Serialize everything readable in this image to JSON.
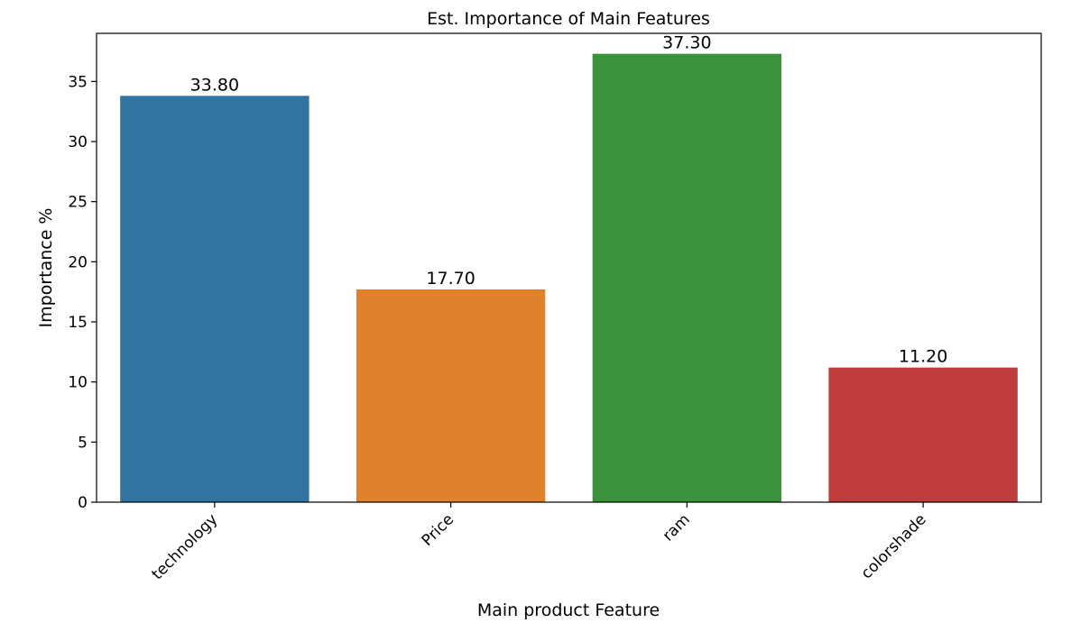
{
  "chart_data": {
    "type": "bar",
    "title": "Est. Importance of Main Features",
    "xlabel": "Main product Feature",
    "ylabel": "Importance %",
    "categories": [
      "technology",
      "Price",
      "ram",
      "colorshade"
    ],
    "values": [
      33.8,
      17.7,
      37.3,
      11.2
    ],
    "value_labels": [
      "33.80",
      "17.70",
      "37.30",
      "11.20"
    ],
    "colors": [
      "#3274a1",
      "#e1812c",
      "#3a923a",
      "#c03d3e"
    ],
    "ylim": [
      0,
      39
    ],
    "yticks": [
      0,
      5,
      10,
      15,
      20,
      25,
      30,
      35
    ],
    "grid": false,
    "legend": "none"
  }
}
